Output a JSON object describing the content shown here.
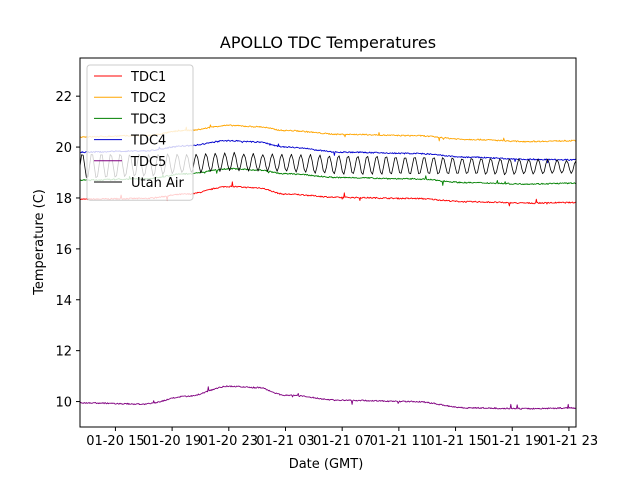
{
  "chart_data": {
    "type": "line",
    "title": "APOLLO TDC Temperatures",
    "xlabel": "Date (GMT)",
    "ylabel": "Temperature (C)",
    "x_unit": "hours since 01-20 11:00 GMT",
    "xlim": [
      1.5,
      36.5
    ],
    "ylim": [
      9.0,
      23.5
    ],
    "x_ticks": [
      {
        "x": 4,
        "label": "01-20 15"
      },
      {
        "x": 8,
        "label": "01-20 19"
      },
      {
        "x": 12,
        "label": "01-20 23"
      },
      {
        "x": 16,
        "label": "01-21 03"
      },
      {
        "x": 20,
        "label": "01-21 07"
      },
      {
        "x": 24,
        "label": "01-21 11"
      },
      {
        "x": 28,
        "label": "01-21 15"
      },
      {
        "x": 32,
        "label": "01-21 19"
      },
      {
        "x": 36,
        "label": "01-21 23"
      }
    ],
    "y_ticks": [
      10,
      12,
      14,
      16,
      18,
      20,
      22
    ],
    "grid": false,
    "legend_position": "top-left",
    "series": [
      {
        "name": "TDC1",
        "color": "#ff0000",
        "x": [
          1.5,
          6,
          9,
          12,
          14,
          16,
          20,
          25,
          29,
          33,
          36.5
        ],
        "y": [
          17.95,
          17.98,
          18.15,
          18.45,
          18.4,
          18.15,
          18.02,
          17.98,
          17.85,
          17.8,
          17.82
        ]
      },
      {
        "name": "TDC2",
        "color": "#ffa500",
        "x": [
          1.5,
          6,
          9,
          12,
          14,
          16,
          20,
          25,
          29,
          33,
          36.5
        ],
        "y": [
          20.4,
          20.45,
          20.65,
          20.85,
          20.8,
          20.65,
          20.5,
          20.45,
          20.3,
          20.22,
          20.25
        ]
      },
      {
        "name": "TDC3",
        "color": "#008000",
        "x": [
          1.5,
          6,
          9,
          12,
          14,
          16,
          20,
          25,
          29,
          33,
          36.5
        ],
        "y": [
          18.7,
          18.75,
          18.95,
          19.15,
          19.1,
          18.95,
          18.8,
          18.75,
          18.6,
          18.55,
          18.58
        ]
      },
      {
        "name": "TDC4",
        "color": "#0000cd",
        "x": [
          1.5,
          6,
          9,
          12,
          14,
          16,
          20,
          25,
          29,
          33,
          36.5
        ],
        "y": [
          19.8,
          19.85,
          20.05,
          20.25,
          20.2,
          20.0,
          19.8,
          19.75,
          19.6,
          19.52,
          19.5
        ]
      },
      {
        "name": "TDC5",
        "color": "#800080",
        "x": [
          1.5,
          6,
          9,
          12,
          14,
          16,
          20,
          25,
          29,
          33,
          36.5
        ],
        "y": [
          9.95,
          9.9,
          10.2,
          10.6,
          10.55,
          10.25,
          10.05,
          10.0,
          9.75,
          9.72,
          9.75
        ]
      },
      {
        "name": "Utah Air",
        "color": "#000000",
        "oscillation_period_hours": 0.67,
        "x": [
          1.5,
          6,
          9,
          12,
          14,
          16,
          20,
          25,
          29,
          33,
          36.5
        ],
        "y_min": [
          18.7,
          18.8,
          18.95,
          19.05,
          19.05,
          19.0,
          18.9,
          18.9,
          18.9,
          18.9,
          18.95
        ],
        "y_max": [
          19.8,
          19.75,
          19.75,
          19.8,
          19.75,
          19.75,
          19.7,
          19.65,
          19.6,
          19.55,
          19.5
        ]
      }
    ]
  }
}
